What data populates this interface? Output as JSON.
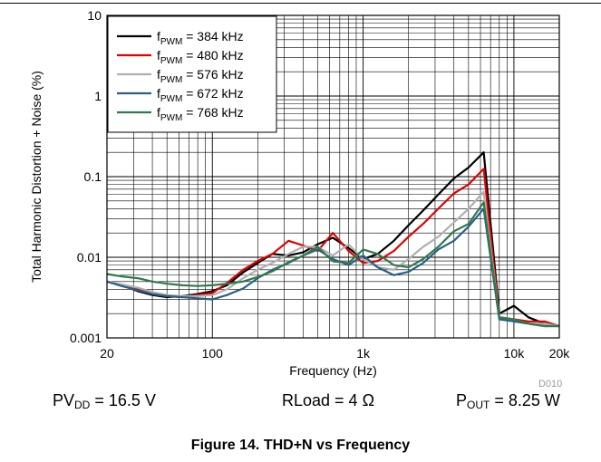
{
  "chart_data": {
    "type": "line",
    "xscale": "log",
    "yscale": "log",
    "xlim": [
      20,
      20000
    ],
    "ylim": [
      0.001,
      10
    ],
    "xlabel": "Frequency (Hz)",
    "ylabel": "Total Harmonic Distortion + Noise (%)",
    "x_ticks": [
      20,
      100,
      1000,
      10000,
      20000
    ],
    "x_tick_labels": [
      "20",
      "100",
      "1k",
      "10k",
      "20k"
    ],
    "y_ticks": [
      0.001,
      0.01,
      0.1,
      1,
      10
    ],
    "y_tick_labels": [
      "0.001",
      "0.01",
      "0.1",
      "1",
      "10"
    ],
    "grid": true,
    "legend_placement": "top-left",
    "x": [
      20,
      25,
      32,
      40,
      50,
      63,
      80,
      100,
      125,
      160,
      200,
      250,
      320,
      400,
      500,
      630,
      800,
      1000,
      1250,
      1600,
      2000,
      2500,
      3150,
      4000,
      5000,
      6300,
      8000,
      10000,
      12500,
      16000,
      20000
    ],
    "series": [
      {
        "name_prefix": "f",
        "name_sub": "PWM",
        "name_suffix": " = 384 kHz",
        "color": "#000000",
        "values": [
          0.005,
          0.0045,
          0.0038,
          0.0034,
          0.0032,
          0.0033,
          0.0035,
          0.0038,
          0.0045,
          0.0065,
          0.0085,
          0.011,
          0.0105,
          0.0115,
          0.0145,
          0.0175,
          0.013,
          0.0095,
          0.011,
          0.016,
          0.025,
          0.038,
          0.06,
          0.095,
          0.13,
          0.2,
          0.002,
          0.0025,
          0.0018,
          0.0015,
          0.0014
        ]
      },
      {
        "name_prefix": "f",
        "name_sub": "PWM",
        "name_suffix": " = 480 kHz",
        "color": "#e00000",
        "values": [
          0.005,
          0.0045,
          0.004,
          0.0035,
          0.0033,
          0.0032,
          0.0034,
          0.0036,
          0.0048,
          0.007,
          0.009,
          0.011,
          0.016,
          0.014,
          0.012,
          0.02,
          0.012,
          0.0085,
          0.009,
          0.012,
          0.018,
          0.026,
          0.04,
          0.062,
          0.08,
          0.125,
          0.0018,
          0.0017,
          0.0016,
          0.0016,
          0.0014
        ]
      },
      {
        "name_prefix": "f",
        "name_sub": "PWM",
        "name_suffix": " = 576 kHz",
        "color": "#b0b0b0",
        "values": [
          0.005,
          0.0046,
          0.0042,
          0.0037,
          0.0034,
          0.0033,
          0.0033,
          0.0034,
          0.004,
          0.0055,
          0.007,
          0.0085,
          0.011,
          0.0135,
          0.0135,
          0.0105,
          0.0145,
          0.0095,
          0.0075,
          0.007,
          0.0095,
          0.0135,
          0.018,
          0.027,
          0.04,
          0.065,
          0.0018,
          0.0016,
          0.0015,
          0.0015,
          0.0014
        ]
      },
      {
        "name_prefix": "f",
        "name_sub": "PWM",
        "name_suffix": " = 672 kHz",
        "color": "#2a5f86",
        "values": [
          0.005,
          0.0044,
          0.0039,
          0.0035,
          0.0033,
          0.0032,
          0.0031,
          0.003,
          0.0034,
          0.0041,
          0.0055,
          0.007,
          0.0085,
          0.0105,
          0.0125,
          0.0095,
          0.008,
          0.0105,
          0.0075,
          0.006,
          0.0066,
          0.0085,
          0.0125,
          0.016,
          0.024,
          0.04,
          0.0017,
          0.0016,
          0.0015,
          0.0014,
          0.0014
        ]
      },
      {
        "name_prefix": "f",
        "name_sub": "PWM",
        "name_suffix": " = 768 kHz",
        "color": "#2f7a4a",
        "values": [
          0.0062,
          0.0058,
          0.0055,
          0.005,
          0.0047,
          0.0045,
          0.0044,
          0.0045,
          0.0047,
          0.005,
          0.0057,
          0.0067,
          0.0087,
          0.0105,
          0.0135,
          0.0089,
          0.0085,
          0.0125,
          0.011,
          0.008,
          0.0075,
          0.0095,
          0.0135,
          0.021,
          0.026,
          0.048,
          0.0018,
          0.0017,
          0.0015,
          0.0014,
          0.0014
        ]
      }
    ]
  },
  "chart_code": "D010",
  "conditions": {
    "pvdd_prefix": "PV",
    "pvdd_sub": "DD",
    "pvdd_suffix": " = 16.5 V",
    "rload": "RLoad = 4 Ω",
    "pout_prefix": "P",
    "pout_sub": "OUT",
    "pout_suffix": " = 8.25 W"
  },
  "caption": "Figure 14. THD+N vs Frequency"
}
